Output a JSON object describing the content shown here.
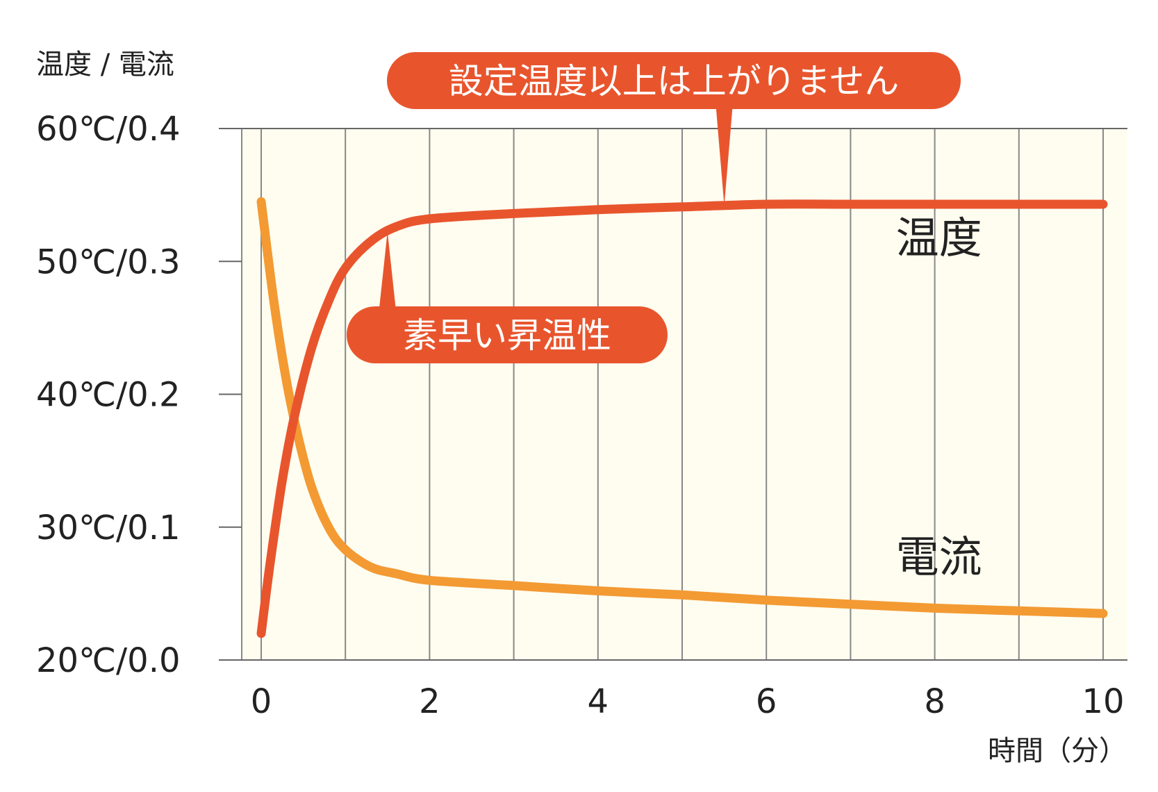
{
  "chart_data": {
    "type": "line",
    "ylabel": "温度 / 電流",
    "xlabel": "時間（分）",
    "xlim": [
      0,
      10
    ],
    "x_ticks": [
      "0",
      "2",
      "4",
      "6",
      "8",
      "10"
    ],
    "y_ticks": [
      "20℃/0.0",
      "30℃/0.1",
      "40℃/0.2",
      "50℃/0.3",
      "60℃/0.4"
    ],
    "temperature_range": [
      20,
      60
    ],
    "current_range": [
      0.0,
      0.4
    ],
    "grid": true,
    "colors": {
      "temperature": "#e8552d",
      "current": "#f39a33",
      "plot_bg": "#fefdf0",
      "grid": "#888888"
    },
    "series": [
      {
        "name": "温度",
        "axis": "temperature",
        "x": [
          0,
          0.1,
          0.25,
          0.4,
          0.6,
          0.8,
          1.0,
          1.3,
          1.6,
          2,
          3,
          4,
          5,
          6,
          7,
          8,
          9,
          10
        ],
        "y": [
          22,
          27,
          33.5,
          38.5,
          43.5,
          47,
          49.5,
          51.5,
          52.6,
          53.2,
          53.6,
          53.9,
          54.1,
          54.3,
          54.3,
          54.3,
          54.3,
          54.3
        ]
      },
      {
        "name": "電流",
        "axis": "current",
        "x": [
          0,
          0.15,
          0.3,
          0.45,
          0.6,
          0.8,
          1.0,
          1.3,
          1.6,
          2,
          3,
          4,
          5,
          6,
          7,
          8,
          9,
          10
        ],
        "y": [
          0.345,
          0.27,
          0.21,
          0.165,
          0.13,
          0.1,
          0.083,
          0.07,
          0.065,
          0.06,
          0.056,
          0.052,
          0.049,
          0.045,
          0.042,
          0.039,
          0.037,
          0.035
        ]
      }
    ],
    "annotations": [
      {
        "text": "設定温度以上は上がりません",
        "x": 5.5,
        "series": "温度"
      },
      {
        "text": "素早い昇温性",
        "x": 1.5,
        "series": "温度"
      }
    ]
  }
}
